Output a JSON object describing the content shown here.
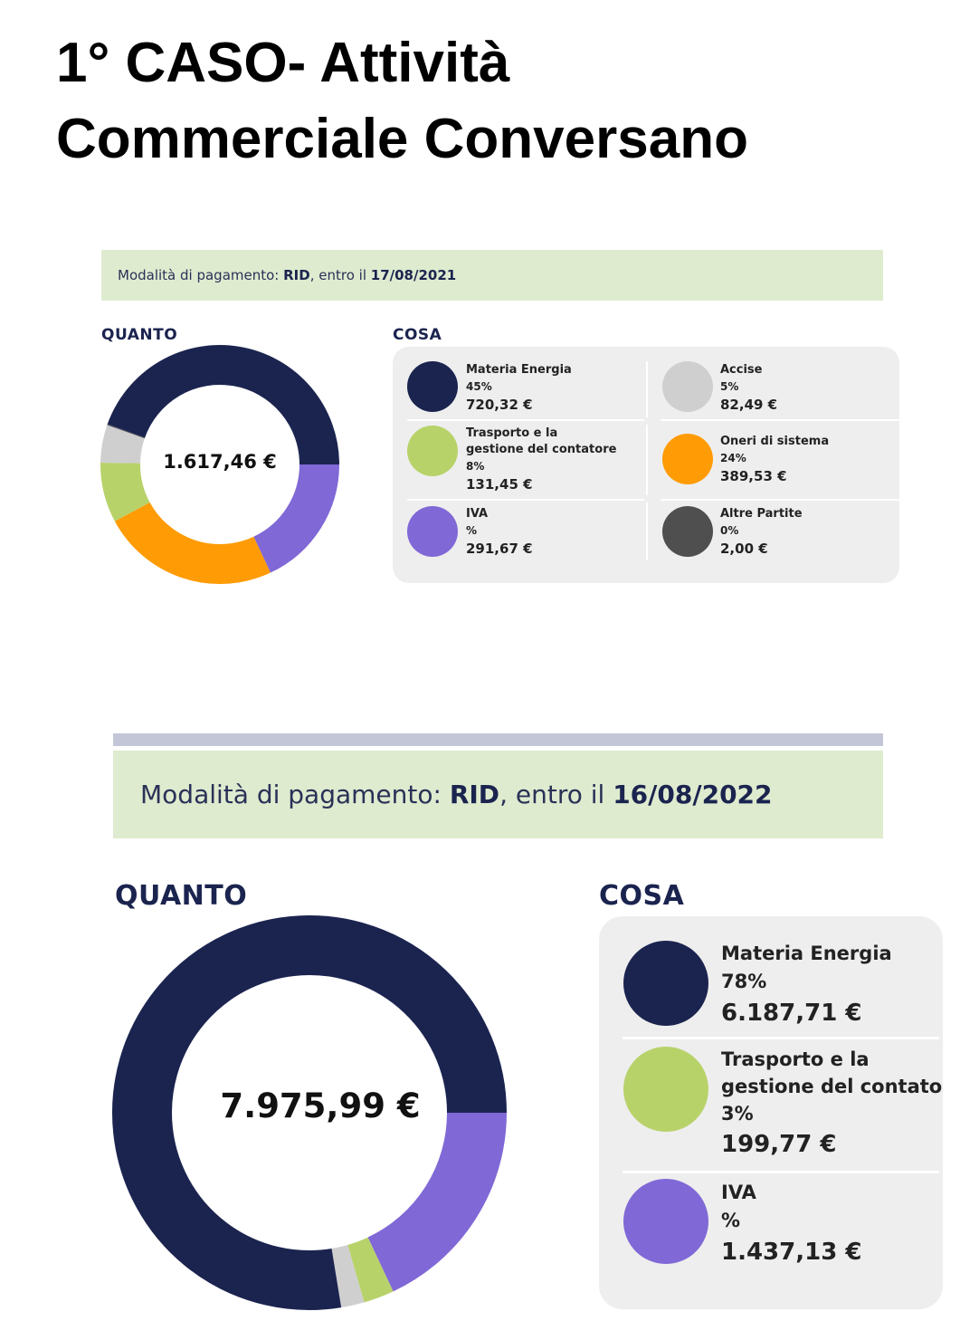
{
  "title": {
    "line1": "1° CASO- Attività",
    "line2": "Commerciale Conversano"
  },
  "bill1": {
    "payment": {
      "prefix": "Modalità di pagamento: ",
      "method": "RID",
      "middle": ", entro il ",
      "date": "17/08/2021"
    },
    "quanto_label": "QUANTO",
    "cosa_label": "COSA",
    "total": "1.617,46 €",
    "items": [
      {
        "name": "Materia Energia",
        "pct": "45%",
        "amount": "720,32 €",
        "color": "#1b244f"
      },
      {
        "name": "Accise",
        "pct": "5%",
        "amount": "82,49 €",
        "color": "#cfcfcf"
      },
      {
        "name": "Trasporto e la",
        "name2": "gestione del contatore",
        "pct": "8%",
        "amount": "131,45 €",
        "color": "#b8d26a"
      },
      {
        "name": "Oneri di sistema",
        "pct": "24%",
        "amount": "389,53 €",
        "color": "#ff9b05"
      },
      {
        "name": "IVA",
        "pct": "%",
        "amount": "291,67 €",
        "color": "#8068d6"
      },
      {
        "name": "Altre Partite",
        "pct": "0%",
        "amount": "2,00 €",
        "color": "#4f4f4f"
      }
    ]
  },
  "bill2": {
    "payment": {
      "prefix": "Modalità di pagamento: ",
      "method": "RID",
      "middle": ", entro il ",
      "date": "16/08/2022"
    },
    "quanto_label": "QUANTO",
    "cosa_label": "COSA",
    "total": "7.975,99 €",
    "items": [
      {
        "name": "Materia Energia",
        "pct": "78%",
        "amount": "6.187,71 €",
        "color": "#1b244f"
      },
      {
        "name": "Trasporto e la",
        "name2": "gestione del contatore",
        "pct": "3%",
        "amount": "199,77 €",
        "color": "#b8d26a"
      },
      {
        "name": "IVA",
        "pct": "%",
        "amount": "1.437,13 €",
        "color": "#8068d6"
      }
    ]
  },
  "chart_data": [
    {
      "type": "pie",
      "title": "QUANTO",
      "center_label": "1.617,46 €",
      "categories": [
        "Materia Energia",
        "IVA",
        "Oneri di sistema",
        "Trasporto e la gestione del contatore",
        "Accise",
        "Altre Partite"
      ],
      "values": [
        720.32,
        291.67,
        389.53,
        131.45,
        82.49,
        2.0
      ],
      "colors": [
        "#1b244f",
        "#8068d6",
        "#ff9b05",
        "#b8d26a",
        "#cfcfcf",
        "#4f4f4f"
      ]
    },
    {
      "type": "pie",
      "title": "QUANTO",
      "center_label": "7.975,99 €",
      "categories": [
        "Materia Energia",
        "IVA",
        "Trasporto e la gestione del contatore",
        "Accise"
      ],
      "values": [
        6187.71,
        1437.13,
        199.77,
        151.38
      ],
      "colors": [
        "#1b244f",
        "#8068d6",
        "#b8d26a",
        "#cfcfcf"
      ]
    }
  ]
}
